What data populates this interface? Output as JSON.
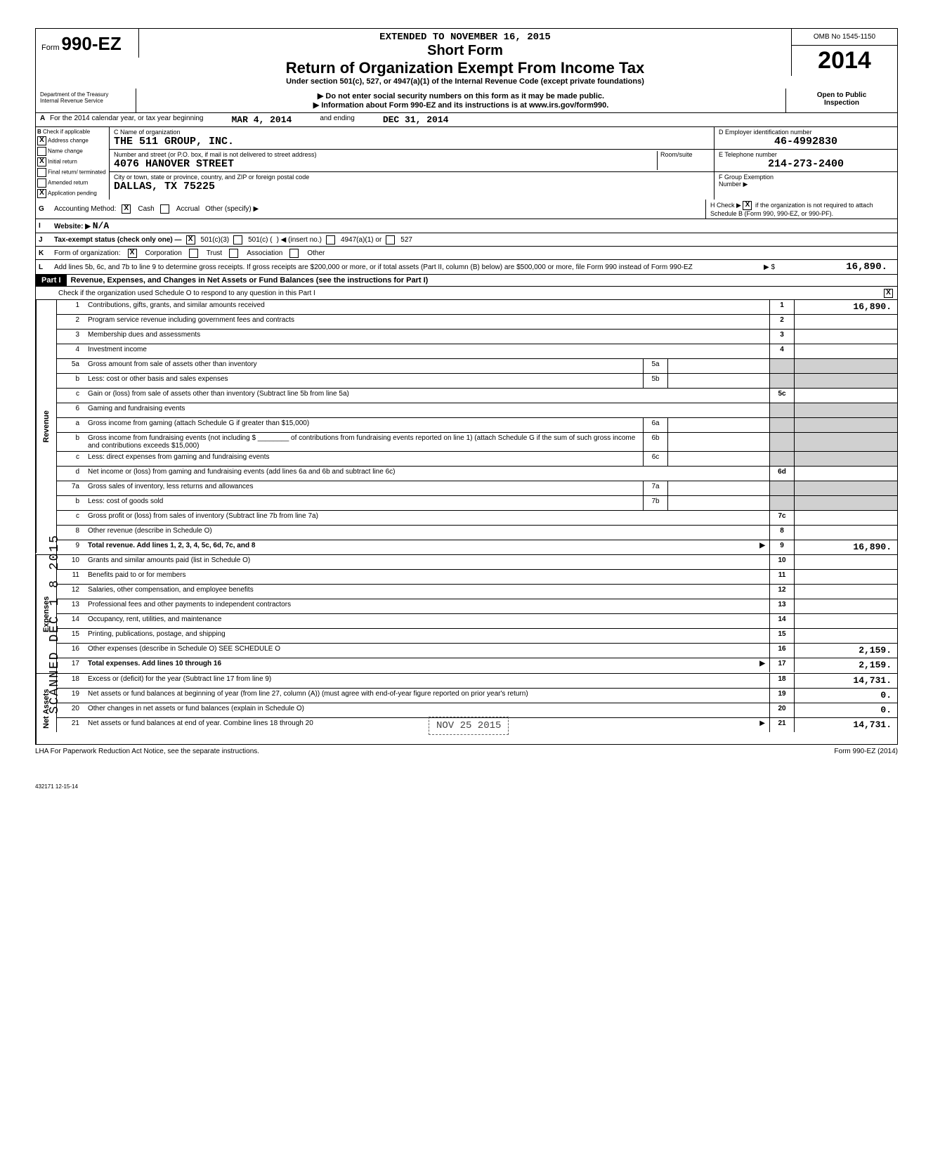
{
  "header": {
    "extended": "EXTENDED TO NOVEMBER 16, 2015",
    "form_label": "Form",
    "form_number": "990-EZ",
    "short_form": "Short Form",
    "title": "Return of Organization Exempt From Income Tax",
    "subtitle": "Under section 501(c), 527, or 4947(a)(1) of the Internal Revenue Code (except private foundations)",
    "warn": "Do not enter social security numbers on this form as it may be made public.",
    "info": "Information about Form 990-EZ and its instructions is at www.irs.gov/form990.",
    "omb": "OMB No 1545-1150",
    "year": "2014",
    "open": "Open to Public",
    "inspection": "Inspection",
    "dept1": "Department of the Treasury",
    "dept2": "Internal Revenue Service"
  },
  "lineA": {
    "label": "A",
    "text1": "For the 2014 calendar year, or tax year beginning",
    "begin": "MAR 4, 2014",
    "text2": "and ending",
    "end": "DEC 31, 2014"
  },
  "colB": {
    "label": "B",
    "sub": "Check if applicable",
    "opts": [
      "Address change",
      "Name change",
      "Initial return",
      "Final return/ terminated",
      "Amended return",
      "Application pending"
    ],
    "checked": [
      true,
      false,
      true,
      false,
      false,
      true
    ]
  },
  "colC": {
    "label_name": "C Name of organization",
    "name": "THE 511 GROUP, INC.",
    "label_addr": "Number and street (or P.O. box, if mail is not delivered to street address)",
    "room": "Room/suite",
    "addr": "4076 HANOVER STREET",
    "label_city": "City or town, state or province, country, and ZIP or foreign postal code",
    "city": "DALLAS, TX   75225"
  },
  "colD": {
    "label": "D Employer identification number",
    "val": "46-4992830",
    "labelE": "E  Telephone number",
    "valE": "214-273-2400",
    "labelF": "F Group Exemption",
    "labelF2": "Number ▶"
  },
  "lineG": {
    "label": "G",
    "text": "Accounting Method:",
    "cash": "Cash",
    "accrual": "Accrual",
    "other": "Other (specify) ▶",
    "H": "H Check ▶",
    "Htext": "if the organization is not required to attach Schedule B (Form 990, 990-EZ, or 990-PF)."
  },
  "lineI": {
    "label": "I",
    "text": "Website: ▶",
    "val": "N/A"
  },
  "lineJ": {
    "label": "J",
    "text": "Tax-exempt status (check only one) —",
    "o1": "501(c)(3)",
    "o2": "501(c) (",
    "o2b": ") ◀ (insert no.)",
    "o3": "4947(a)(1) or",
    "o4": "527"
  },
  "lineK": {
    "label": "K",
    "text": "Form of organization:",
    "o1": "Corporation",
    "o2": "Trust",
    "o3": "Association",
    "o4": "Other"
  },
  "lineL": {
    "label": "L",
    "text": "Add lines 5b, 6c, and 7b to line 9 to determine gross receipts. If gross receipts are $200,000 or more, or if total assets (Part II, column (B) below) are $500,000 or more, file Form 990 instead of Form 990-EZ",
    "arrow": "▶  $",
    "val": "16,890."
  },
  "part1": {
    "label": "Part I",
    "title": "Revenue, Expenses, and Changes in Net Assets or Fund Balances (see the instructions for Part I)",
    "check": "Check if the organization used Schedule O to respond to any question in this Part I"
  },
  "rows": [
    {
      "n": "1",
      "desc": "Contributions, gifts, grants, and similar amounts received",
      "rn": "1",
      "rv": "16,890."
    },
    {
      "n": "2",
      "desc": "Program service revenue including government fees and contracts",
      "rn": "2",
      "rv": ""
    },
    {
      "n": "3",
      "desc": "Membership dues and assessments",
      "rn": "3",
      "rv": ""
    },
    {
      "n": "4",
      "desc": "Investment income",
      "rn": "4",
      "rv": ""
    },
    {
      "n": "5a",
      "desc": "Gross amount from sale of assets other than inventory",
      "mn": "5a",
      "mv": "",
      "rn": "",
      "rv": "",
      "shadeR": true
    },
    {
      "n": "b",
      "desc": "Less: cost or other basis and sales expenses",
      "mn": "5b",
      "mv": "",
      "rn": "",
      "rv": "",
      "shadeR": true
    },
    {
      "n": "c",
      "desc": "Gain or (loss) from sale of assets other than inventory (Subtract line 5b from line 5a)",
      "rn": "5c",
      "rv": ""
    },
    {
      "n": "6",
      "desc": "Gaming and fundraising events",
      "rn": "",
      "rv": "",
      "shadeR": true
    },
    {
      "n": "a",
      "desc": "Gross income from gaming (attach Schedule G if greater than $15,000)",
      "mn": "6a",
      "mv": "",
      "rn": "",
      "rv": "",
      "shadeR": true
    },
    {
      "n": "b",
      "desc": "Gross income from fundraising events (not including $ ________ of contributions from fundraising events reported on line 1) (attach Schedule G if the sum of such gross income and contributions exceeds $15,000)",
      "mn": "6b",
      "mv": "",
      "rn": "",
      "rv": "",
      "shadeR": true
    },
    {
      "n": "c",
      "desc": "Less: direct expenses from gaming and fundraising events",
      "mn": "6c",
      "mv": "",
      "rn": "",
      "rv": "",
      "shadeR": true
    },
    {
      "n": "d",
      "desc": "Net income or (loss) from gaming and fundraising events (add lines 6a and 6b and subtract line 6c)",
      "rn": "6d",
      "rv": ""
    },
    {
      "n": "7a",
      "desc": "Gross sales of inventory, less returns and allowances",
      "mn": "7a",
      "mv": "",
      "rn": "",
      "rv": "",
      "shadeR": true
    },
    {
      "n": "b",
      "desc": "Less: cost of goods sold",
      "mn": "7b",
      "mv": "",
      "rn": "",
      "rv": "",
      "shadeR": true
    },
    {
      "n": "c",
      "desc": "Gross profit or (loss) from sales of inventory (Subtract line 7b from line 7a)",
      "rn": "7c",
      "rv": ""
    },
    {
      "n": "8",
      "desc": "Other revenue (describe in Schedule O)",
      "rn": "8",
      "rv": ""
    },
    {
      "n": "9",
      "desc": "Total revenue. Add lines 1, 2, 3, 4, 5c, 6d, 7c, and 8",
      "arrow": true,
      "rn": "9",
      "rv": "16,890.",
      "bold": true
    },
    {
      "n": "10",
      "desc": "Grants and similar amounts paid (list in Schedule O)",
      "rn": "10",
      "rv": ""
    },
    {
      "n": "11",
      "desc": "Benefits paid to or for members",
      "rn": "11",
      "rv": ""
    },
    {
      "n": "12",
      "desc": "Salaries, other compensation, and employee benefits",
      "rn": "12",
      "rv": ""
    },
    {
      "n": "13",
      "desc": "Professional fees and other payments to independent contractors",
      "rn": "13",
      "rv": ""
    },
    {
      "n": "14",
      "desc": "Occupancy, rent, utilities, and maintenance",
      "rn": "14",
      "rv": ""
    },
    {
      "n": "15",
      "desc": "Printing, publications, postage, and shipping",
      "rn": "15",
      "rv": ""
    },
    {
      "n": "16",
      "desc": "Other expenses (describe in Schedule O)                                        SEE SCHEDULE O",
      "rn": "16",
      "rv": "2,159."
    },
    {
      "n": "17",
      "desc": "Total expenses. Add lines 10 through 16",
      "arrow": true,
      "rn": "17",
      "rv": "2,159.",
      "bold": true
    },
    {
      "n": "18",
      "desc": "Excess or (deficit) for the year (Subtract line 17 from line 9)",
      "rn": "18",
      "rv": "14,731."
    },
    {
      "n": "19",
      "desc": "Net assets or fund balances at beginning of year (from line 27, column (A)) (must agree with end-of-year figure reported on prior year's return)",
      "rn": "19",
      "rv": "0."
    },
    {
      "n": "20",
      "desc": "Other changes in net assets or fund balances (explain in Schedule O)",
      "rn": "20",
      "rv": "0."
    },
    {
      "n": "21",
      "desc": "Net assets or fund balances at end of year. Combine lines 18 through 20",
      "arrow": true,
      "rn": "21",
      "rv": "14,731."
    }
  ],
  "side_labels": {
    "revenue": "Revenue",
    "expenses": "Expenses",
    "netassets": "Net Assets"
  },
  "footer": {
    "lha": "LHA  For Paperwork Reduction Act Notice, see the separate instructions.",
    "form": "Form 990-EZ (2014)",
    "code": "432171\n12-15-14"
  },
  "stamps": {
    "scanned": "SCANNED DEC 1 8 2015",
    "received": "NOV 25 2015"
  }
}
